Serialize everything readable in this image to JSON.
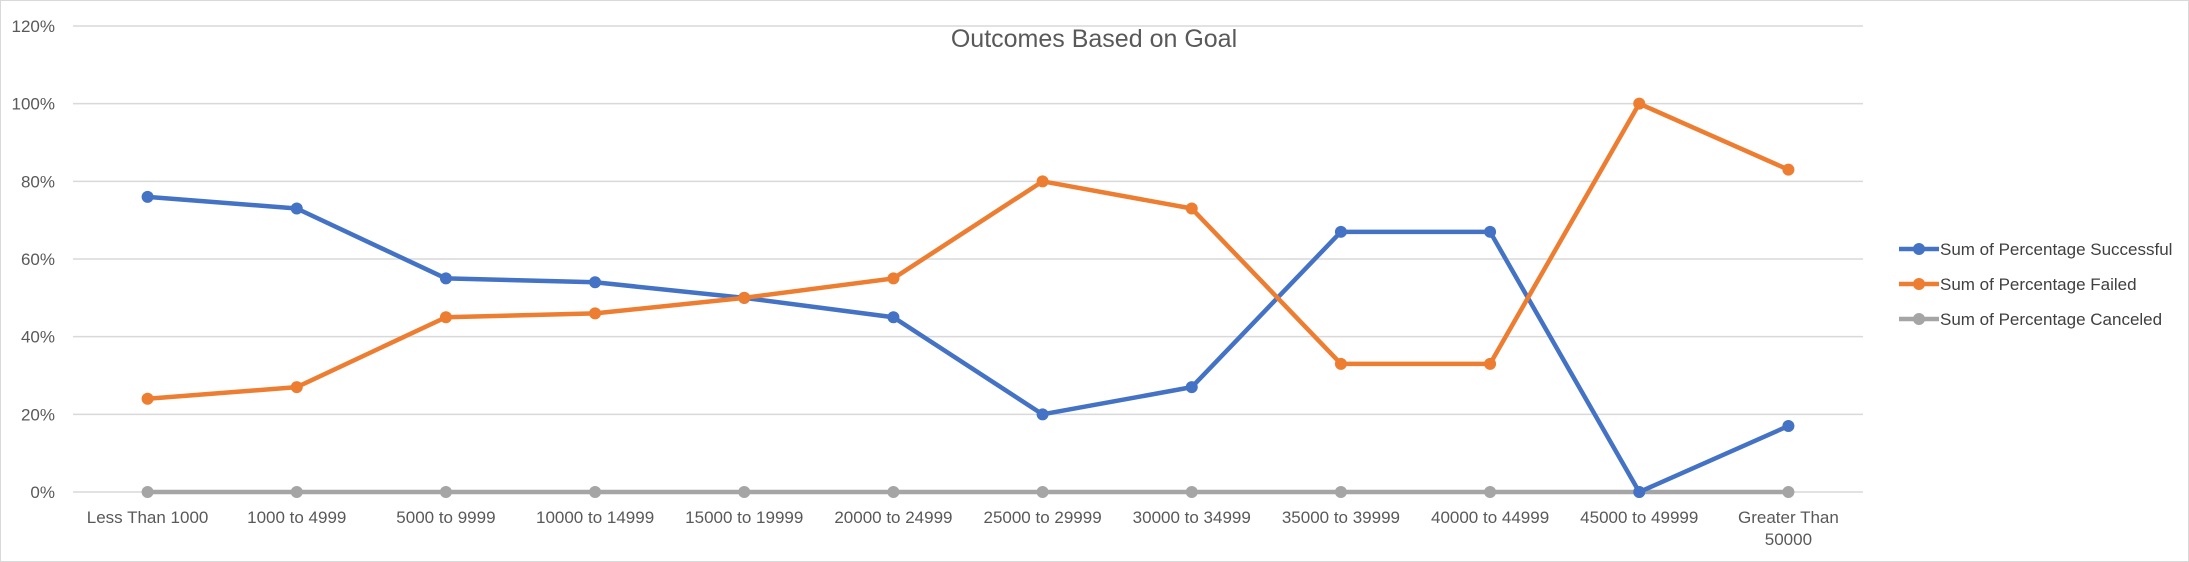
{
  "chart_data": {
    "type": "line",
    "title": "Outcomes Based on Goal",
    "xlabel": "",
    "ylabel": "",
    "categories": [
      "Less Than 1000",
      "1000 to 4999",
      "5000 to 9999",
      "10000 to 14999",
      "15000 to 19999",
      "20000 to 24999",
      "25000 to 29999",
      "30000 to 34999",
      "35000 to 39999",
      "40000 to 44999",
      "45000 to 49999",
      "Greater Than 50000"
    ],
    "ylim": [
      0,
      120
    ],
    "yticks": [
      "0%",
      "20%",
      "40%",
      "60%",
      "80%",
      "100%",
      "120%"
    ],
    "grid": true,
    "legend_position": "right",
    "series": [
      {
        "name": "Sum of Percentage Successful",
        "color": "#4472c4",
        "values": [
          76,
          73,
          55,
          54,
          50,
          45,
          20,
          27,
          67,
          67,
          0,
          17
        ]
      },
      {
        "name": "Sum of Percentage Failed",
        "color": "#ed7d31",
        "values": [
          24,
          27,
          45,
          46,
          50,
          55,
          80,
          73,
          33,
          33,
          100,
          83
        ]
      },
      {
        "name": "Sum of Percentage Canceled",
        "color": "#a5a5a5",
        "values": [
          0,
          0,
          0,
          0,
          0,
          0,
          0,
          0,
          0,
          0,
          0,
          0
        ]
      }
    ]
  }
}
